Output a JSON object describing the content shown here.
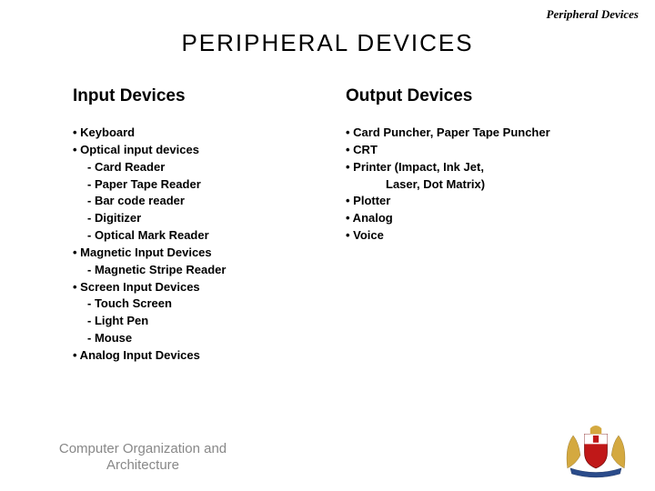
{
  "header_label": "Peripheral Devices",
  "title": "PERIPHERAL  DEVICES",
  "columns": {
    "left": {
      "heading": "Input Devices",
      "lines": [
        {
          "text": "• Keyboard",
          "lvl": 0
        },
        {
          "text": "• Optical input devices",
          "lvl": 0
        },
        {
          "text": "- Card Reader",
          "lvl": 1
        },
        {
          "text": "- Paper Tape Reader",
          "lvl": 1
        },
        {
          "text": "- Bar code reader",
          "lvl": 1
        },
        {
          "text": "- Digitizer",
          "lvl": 1
        },
        {
          "text": "- Optical Mark Reader",
          "lvl": 1
        },
        {
          "text": "• Magnetic Input Devices",
          "lvl": 0
        },
        {
          "text": "- Magnetic Stripe Reader",
          "lvl": 1
        },
        {
          "text": "• Screen Input Devices",
          "lvl": 0
        },
        {
          "text": "- Touch Screen",
          "lvl": 1
        },
        {
          "text": "- Light Pen",
          "lvl": 1
        },
        {
          "text": "- Mouse",
          "lvl": 1
        },
        {
          "text": "• Analog Input Devices",
          "lvl": 0
        }
      ]
    },
    "right": {
      "heading": "Output Devices",
      "lines": [
        {
          "text": "• Card Puncher,  Paper Tape Puncher",
          "lvl": 0
        },
        {
          "text": "• CRT",
          "lvl": 0
        },
        {
          "text": "• Printer (Impact, Ink Jet,",
          "lvl": 0
        },
        {
          "text": "Laser, Dot Matrix)",
          "lvl": 2
        },
        {
          "text": "• Plotter",
          "lvl": 0
        },
        {
          "text": "• Analog",
          "lvl": 0
        },
        {
          "text": "• Voice",
          "lvl": 0
        }
      ]
    }
  },
  "footer_line1": "Computer Organization and",
  "footer_line2": "Architecture",
  "colors": {
    "background": "#ffffff",
    "text": "#000000",
    "footer_text": "#888888",
    "crest_red": "#c01818",
    "crest_gold": "#d4a940",
    "crest_white": "#ffffff",
    "crest_blue": "#2a4b8a"
  }
}
